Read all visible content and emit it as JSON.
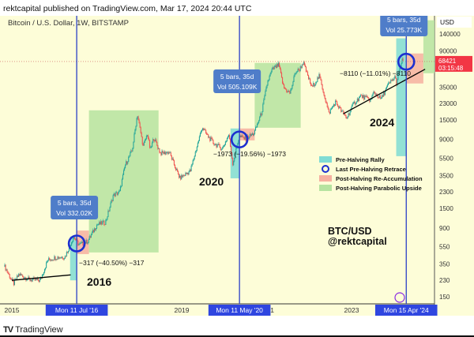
{
  "header": {
    "published": "rektcapital published on TradingView.com, Mar 17, 2024 20:44 UTC"
  },
  "footer": {
    "brand": "TradingView"
  },
  "chart_data": {
    "type": "candlestick",
    "title": "Bitcoin / U.S. Dollar, 1W, BITSTAMP",
    "currency": "USD",
    "yscale": "log",
    "ylim": [
      120,
      200000
    ],
    "xlim": [
      "2014-11-01",
      "2025-01-01"
    ],
    "y_ticks": [
      140000,
      90000,
      35000,
      23000,
      15000,
      9000,
      5500,
      3500,
      2300,
      1500,
      900,
      550,
      350,
      230,
      150
    ],
    "x_ticks": [
      "2015",
      "2019",
      "2021",
      "2023"
    ],
    "current_price": {
      "value": "68421",
      "countdown": "03:15:48",
      "color": "#f23645"
    },
    "price_path": [
      [
        "2014-11-01",
        330
      ],
      [
        "2015-01-15",
        210
      ],
      [
        "2015-03-01",
        270
      ],
      [
        "2015-06-01",
        235
      ],
      [
        "2015-09-01",
        230
      ],
      [
        "2015-11-05",
        390
      ],
      [
        "2016-01-10",
        420
      ],
      [
        "2016-04-01",
        425
      ],
      [
        "2016-06-15",
        720
      ],
      [
        "2016-08-01",
        580
      ],
      [
        "2016-10-15",
        640
      ],
      [
        "2017-01-01",
        980
      ],
      [
        "2017-03-15",
        1050
      ],
      [
        "2017-05-20",
        2100
      ],
      [
        "2017-07-15",
        2300
      ],
      [
        "2017-09-01",
        4600
      ],
      [
        "2017-11-01",
        6800
      ],
      [
        "2017-12-15",
        17500
      ],
      [
        "2018-02-05",
        7500
      ],
      [
        "2018-03-10",
        10500
      ],
      [
        "2018-04-05",
        6800
      ],
      [
        "2018-05-05",
        9500
      ],
      [
        "2018-07-01",
        6300
      ],
      [
        "2018-09-15",
        6500
      ],
      [
        "2018-11-25",
        3800
      ],
      [
        "2018-12-15",
        3300
      ],
      [
        "2019-03-15",
        4000
      ],
      [
        "2019-06-25",
        12500
      ],
      [
        "2019-08-01",
        10300
      ],
      [
        "2019-10-01",
        8200
      ],
      [
        "2019-12-15",
        7100
      ],
      [
        "2020-02-10",
        10200
      ],
      [
        "2020-03-15",
        4800
      ],
      [
        "2020-05-08",
        9800
      ],
      [
        "2020-07-01",
        9200
      ],
      [
        "2020-09-15",
        10600
      ],
      [
        "2020-11-20",
        18500
      ],
      [
        "2021-01-08",
        40000
      ],
      [
        "2021-02-20",
        56000
      ],
      [
        "2021-04-14",
        63000
      ],
      [
        "2021-05-25",
        35000
      ],
      [
        "2021-07-20",
        30000
      ],
      [
        "2021-09-05",
        52000
      ],
      [
        "2021-10-10",
        56000
      ],
      [
        "2021-11-10",
        67000
      ],
      [
        "2022-01-24",
        35000
      ],
      [
        "2022-03-28",
        47000
      ],
      [
        "2022-05-12",
        28000
      ],
      [
        "2022-06-18",
        17800
      ],
      [
        "2022-08-15",
        24000
      ],
      [
        "2022-10-01",
        19200
      ],
      [
        "2022-11-20",
        15800
      ],
      [
        "2023-01-20",
        23000
      ],
      [
        "2023-03-20",
        28000
      ],
      [
        "2023-06-15",
        25000
      ],
      [
        "2023-07-10",
        31000
      ],
      [
        "2023-09-10",
        25800
      ],
      [
        "2023-11-10",
        37000
      ],
      [
        "2024-01-10",
        46000
      ],
      [
        "2024-01-22",
        39000
      ],
      [
        "2024-02-28",
        62000
      ],
      [
        "2024-03-14",
        73000
      ],
      [
        "2024-03-17",
        68421
      ]
    ],
    "zones": [
      {
        "type": "pre-halving-rally",
        "from": "2016-05-15",
        "to": "2016-07-11",
        "low": 230,
        "high": 720
      },
      {
        "type": "post-halving-re-accumulation",
        "from": "2016-07-11",
        "to": "2016-10-25",
        "low": 455,
        "high": 840
      },
      {
        "type": "post-halving-parabolic-upside",
        "from": "2016-10-25",
        "to": "2018-06-15",
        "low": 475,
        "high": 19200
      },
      {
        "type": "pre-halving-rally",
        "from": "2020-02-25",
        "to": "2020-05-11",
        "low": 3270,
        "high": 11970
      },
      {
        "type": "post-halving-re-accumulation",
        "from": "2020-05-11",
        "to": "2020-09-20",
        "low": 8780,
        "high": 11970
      },
      {
        "type": "post-halving-parabolic-upside",
        "from": "2020-09-20",
        "to": "2021-10-20",
        "low": 12200,
        "high": 65900
      },
      {
        "type": "pre-halving-rally",
        "from": "2024-01-20",
        "to": "2024-04-15",
        "low": 5820,
        "high": 125000
      },
      {
        "type": "post-halving-re-accumulation",
        "from": "2024-04-15",
        "to": "2024-09-10",
        "low": 38600,
        "high": 84300
      },
      {
        "type": "post-halving-parabolic-upside",
        "from": "2024-09-10",
        "to": "2025-01-01",
        "low": 50400,
        "high": 200000
      }
    ],
    "zone_colors": {
      "pre-halving-rally": "#7fdcd4",
      "post-halving-re-accumulation": "#f6b0a0",
      "post-halving-parabolic-upside": "#b6e3a0",
      "retrace-circle": "#1c2fd0",
      "halving-line": "#2a3fc7"
    },
    "halvings": [
      {
        "date": "2016-07-11",
        "label": "Mon 11 Jul '16",
        "price": 600,
        "bars": "5 bars, 35d",
        "vol": "Vol 332.02K",
        "retrace": "−317 (−40.50%) −317",
        "year": "2016",
        "trend_price": 480
      },
      {
        "date": "2020-05-11",
        "label": "Mon 11 May '20",
        "price": 9000,
        "bars": "5 bars, 35d",
        "vol": "Vol 505.109K",
        "retrace": "−1973 (−19.56%) −1973",
        "year": "2020"
      },
      {
        "date": "2024-04-15",
        "label": "Mon 15 Apr '24",
        "price": 68000,
        "bars": "5 bars, 35d",
        "vol": "Vol 25.773K",
        "retrace": "−8110 (−11.01%) −8110",
        "year": "2024"
      }
    ],
    "trendlines": [
      {
        "from": [
          "2015-01-01",
          230
        ],
        "to": [
          "2016-05-20",
          265
        ]
      },
      {
        "from": [
          "2022-10-20",
          17500
        ],
        "to": [
          "2024-09-25",
          56000
        ]
      }
    ],
    "legend": {
      "placement": "center-right",
      "items": [
        {
          "type": "pre-halving-rally",
          "label": "Pre-Halving Rally"
        },
        {
          "type": "retrace-circle",
          "label": "Last Pre-Halving Retrace"
        },
        {
          "type": "post-halving-re-accumulation",
          "label": "Post-Halving Re-Accumulation"
        },
        {
          "type": "post-halving-parabolic-upside",
          "label": "Post-Halving Parabolic Upside"
        }
      ]
    },
    "annotation": {
      "line1": "BTC/USD",
      "line2": "@rektcapital"
    }
  }
}
